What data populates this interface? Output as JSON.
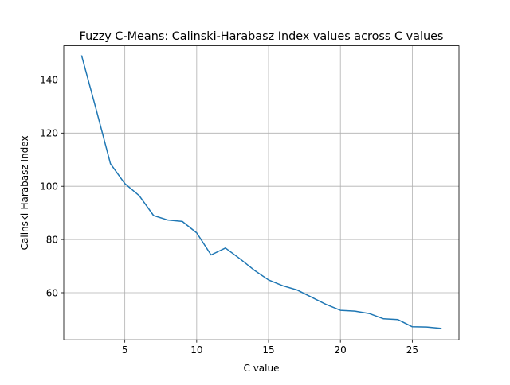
{
  "chart_data": {
    "type": "line",
    "title": "Fuzzy C-Means: Calinski-Harabasz Index values across C values",
    "xlabel": "C value",
    "ylabel": "Calinski-Harabasz Index",
    "xlim": [
      0.75,
      28.25
    ],
    "ylim": [
      42.3,
      152.8
    ],
    "xticks": [
      5,
      10,
      15,
      20,
      25
    ],
    "yticks": [
      60,
      80,
      100,
      120,
      140
    ],
    "grid": true,
    "line_color": "#1f77b4",
    "series": [
      {
        "x": [
          2,
          3,
          4,
          5,
          6,
          7,
          8,
          9,
          10,
          11,
          12,
          13,
          14,
          15,
          16,
          17,
          18,
          19,
          20,
          21,
          22,
          23,
          24,
          25,
          26,
          27
        ],
        "values": [
          149.0,
          129.0,
          108.5,
          101.0,
          96.5,
          89.0,
          87.3,
          86.8,
          82.5,
          74.2,
          76.8,
          72.8,
          68.5,
          64.8,
          62.6,
          61.0,
          58.3,
          55.6,
          53.4,
          53.1,
          52.2,
          50.2,
          49.9,
          47.2,
          47.1,
          46.6
        ]
      }
    ]
  }
}
